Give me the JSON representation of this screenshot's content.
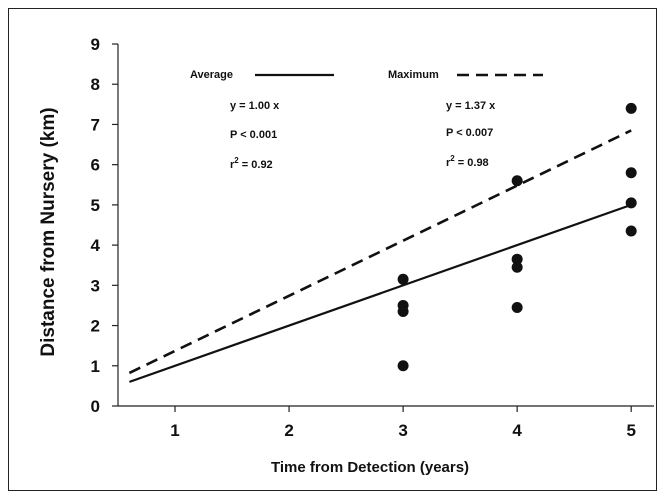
{
  "chart_data": {
    "type": "scatter",
    "title": "",
    "xlabel": "Time from Detection (years)",
    "ylabel": "Distance from Nursery (km)",
    "xlim": [
      0.5,
      5.2
    ],
    "ylim": [
      0,
      9
    ],
    "x_ticks": [
      "1",
      "2",
      "3",
      "4",
      "5"
    ],
    "y_ticks": [
      "0",
      "1",
      "2",
      "3",
      "4",
      "5",
      "6",
      "7",
      "8",
      "9"
    ],
    "grid": false,
    "points": [
      {
        "x": 3,
        "y": 1.0
      },
      {
        "x": 3,
        "y": 2.35
      },
      {
        "x": 3,
        "y": 2.5
      },
      {
        "x": 3,
        "y": 3.15
      },
      {
        "x": 4,
        "y": 2.45
      },
      {
        "x": 4,
        "y": 3.45
      },
      {
        "x": 4,
        "y": 3.65
      },
      {
        "x": 4,
        "y": 5.6
      },
      {
        "x": 5,
        "y": 4.35
      },
      {
        "x": 5,
        "y": 5.05
      },
      {
        "x": 5,
        "y": 5.8
      },
      {
        "x": 5,
        "y": 7.4
      }
    ],
    "series": [
      {
        "name": "Average",
        "style": "solid",
        "slope": 1.0,
        "x_range": [
          0.6,
          5.0
        ]
      },
      {
        "name": "Maximum",
        "style": "dashed",
        "slope": 1.37,
        "x_range": [
          0.6,
          5.0
        ]
      }
    ],
    "legend": {
      "placement": "top",
      "items": [
        {
          "label": "Average",
          "style": "solid"
        },
        {
          "label": "Maximum",
          "style": "dashed"
        }
      ]
    },
    "annotations": {
      "average": {
        "equation": "y = 1.00 x",
        "p_value": "P < 0.001",
        "r2_label": "r",
        "r2_sup": "2",
        "r2_value": " = 0.92"
      },
      "maximum": {
        "equation": "y = 1.37 x",
        "p_value": "P < 0.007",
        "r2_label": "r",
        "r2_sup": "2",
        "r2_value": " = 0.98"
      }
    },
    "colors": {
      "ink": "#111111",
      "background": "#ffffff"
    }
  }
}
